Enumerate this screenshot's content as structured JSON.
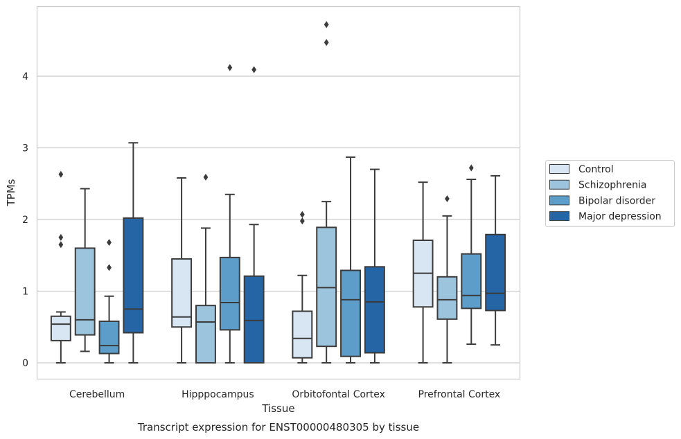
{
  "caption": "Transcript expression for ENST00000480305 by tissue",
  "chart_data": {
    "type": "box",
    "xlabel": "Tissue",
    "ylabel": "TPMs",
    "ylim": [
      -0.22,
      4.98
    ],
    "yticks": [
      0,
      1,
      2,
      3,
      4
    ],
    "grid": true,
    "legend_position": "right",
    "categories": [
      "Cerebellum",
      "Hipppocampus",
      "Orbitofontal Cortex",
      "Prefrontal Cortex"
    ],
    "series": [
      {
        "name": "Control",
        "color": "#d8e6f3",
        "boxes": [
          {
            "whislo": 0.0,
            "q1": 0.31,
            "med": 0.54,
            "q3": 0.65,
            "whishi": 0.71,
            "fliers": [
              1.65,
              1.75,
              2.63
            ]
          },
          {
            "whislo": 0.0,
            "q1": 0.5,
            "med": 0.64,
            "q3": 1.45,
            "whishi": 2.58,
            "fliers": []
          },
          {
            "whislo": 0.0,
            "q1": 0.07,
            "med": 0.34,
            "q3": 0.72,
            "whishi": 1.22,
            "fliers": [
              1.98,
              2.07
            ]
          },
          {
            "whislo": 0.0,
            "q1": 0.78,
            "med": 1.25,
            "q3": 1.71,
            "whishi": 2.52,
            "fliers": []
          }
        ]
      },
      {
        "name": "Schizophrenia",
        "color": "#9dc4dd",
        "boxes": [
          {
            "whislo": 0.16,
            "q1": 0.39,
            "med": 0.6,
            "q3": 1.6,
            "whishi": 2.43,
            "fliers": []
          },
          {
            "whislo": 0.0,
            "q1": 0.0,
            "med": 0.57,
            "q3": 0.8,
            "whishi": 1.88,
            "fliers": [
              2.59
            ]
          },
          {
            "whislo": 0.0,
            "q1": 0.23,
            "med": 1.05,
            "q3": 1.89,
            "whishi": 2.25,
            "fliers": [
              4.47,
              4.72
            ]
          },
          {
            "whislo": 0.0,
            "q1": 0.61,
            "med": 0.88,
            "q3": 1.2,
            "whishi": 2.05,
            "fliers": [
              2.29
            ]
          }
        ]
      },
      {
        "name": "Bipolar disorder",
        "color": "#5c9dc9",
        "boxes": [
          {
            "whislo": 0.0,
            "q1": 0.13,
            "med": 0.24,
            "q3": 0.58,
            "whishi": 0.93,
            "fliers": [
              1.33,
              1.68
            ]
          },
          {
            "whislo": 0.0,
            "q1": 0.46,
            "med": 0.84,
            "q3": 1.47,
            "whishi": 2.35,
            "fliers": [
              4.12
            ]
          },
          {
            "whislo": 0.0,
            "q1": 0.09,
            "med": 0.88,
            "q3": 1.29,
            "whishi": 2.87,
            "fliers": []
          },
          {
            "whislo": 0.26,
            "q1": 0.76,
            "med": 0.94,
            "q3": 1.52,
            "whishi": 2.56,
            "fliers": [
              2.72
            ]
          }
        ]
      },
      {
        "name": "Major depression",
        "color": "#2565a6",
        "boxes": [
          {
            "whislo": 0.0,
            "q1": 0.42,
            "med": 0.75,
            "q3": 2.02,
            "whishi": 3.07,
            "fliers": []
          },
          {
            "whislo": 0.0,
            "q1": 0.0,
            "med": 0.59,
            "q3": 1.21,
            "whishi": 1.93,
            "fliers": [
              4.09
            ]
          },
          {
            "whislo": 0.0,
            "q1": 0.14,
            "med": 0.85,
            "q3": 1.34,
            "whishi": 2.7,
            "fliers": []
          },
          {
            "whislo": 0.25,
            "q1": 0.73,
            "med": 0.97,
            "q3": 1.79,
            "whishi": 2.61,
            "fliers": []
          }
        ]
      }
    ]
  }
}
